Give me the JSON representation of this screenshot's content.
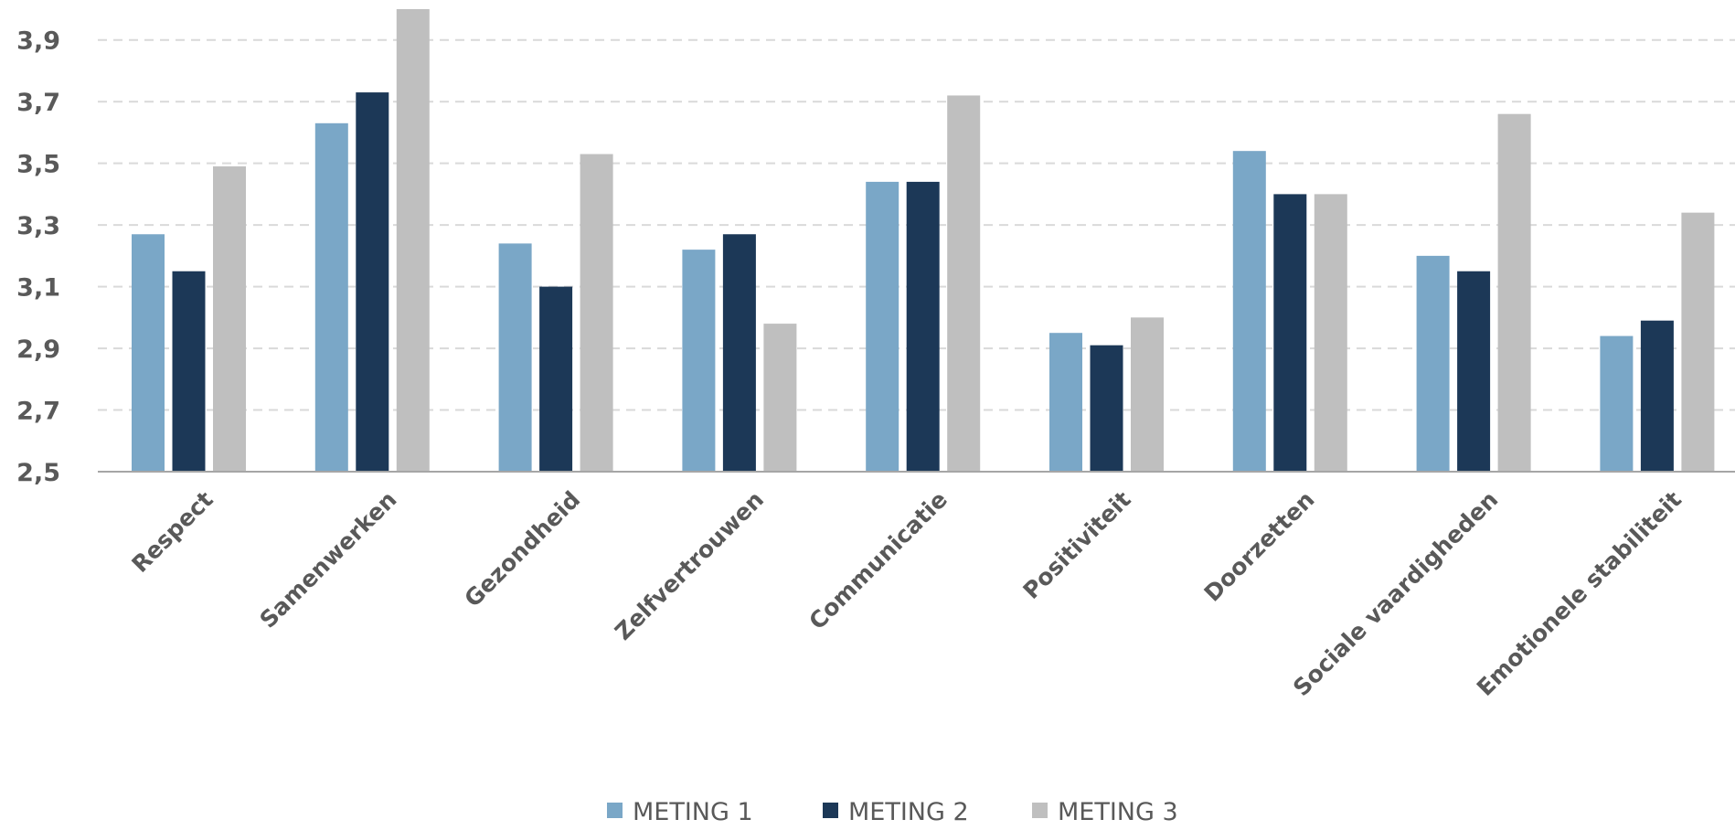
{
  "chart_data": {
    "type": "bar",
    "categories": [
      "Respect",
      "Samenwerken",
      "Gezondheid",
      "Zelfvertrouwen",
      "Communicatie",
      "Positiviteit",
      "Doorzetten",
      "Sociale vaardigheden",
      "Emotionele stabiliteit"
    ],
    "series": [
      {
        "name": "METING 1",
        "color": "#7aa7c7",
        "values": [
          3.27,
          3.63,
          3.24,
          3.22,
          3.44,
          2.95,
          3.54,
          3.2,
          2.94
        ]
      },
      {
        "name": "METING 2",
        "color": "#1c3857",
        "values": [
          3.15,
          3.73,
          3.1,
          3.27,
          3.44,
          2.91,
          3.4,
          3.15,
          2.99
        ]
      },
      {
        "name": "METING 3",
        "color": "#bfbfbf",
        "values": [
          3.49,
          4.0,
          3.53,
          2.98,
          3.72,
          3.0,
          3.4,
          3.66,
          3.34
        ]
      }
    ],
    "yticks": [
      "2,5",
      "2,7",
      "2,9",
      "3,1",
      "3,3",
      "3,5",
      "3,7",
      "3,9"
    ],
    "ylim": [
      2.5,
      4.0
    ],
    "grid": true,
    "legend": "bottom"
  }
}
